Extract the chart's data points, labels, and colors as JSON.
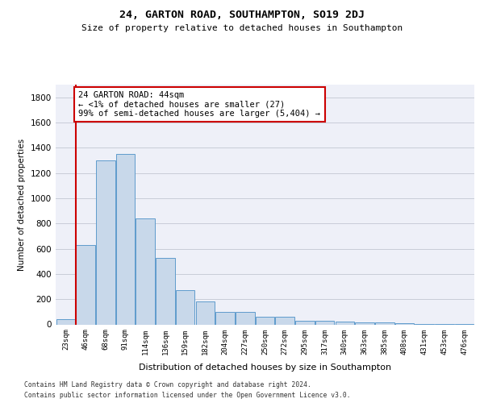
{
  "title_line1": "24, GARTON ROAD, SOUTHAMPTON, SO19 2DJ",
  "title_line2": "Size of property relative to detached houses in Southampton",
  "xlabel": "Distribution of detached houses by size in Southampton",
  "ylabel": "Number of detached properties",
  "categories": [
    "23sqm",
    "46sqm",
    "68sqm",
    "91sqm",
    "114sqm",
    "136sqm",
    "159sqm",
    "182sqm",
    "204sqm",
    "227sqm",
    "250sqm",
    "272sqm",
    "295sqm",
    "317sqm",
    "340sqm",
    "363sqm",
    "385sqm",
    "408sqm",
    "431sqm",
    "453sqm",
    "476sqm"
  ],
  "values": [
    40,
    630,
    1300,
    1350,
    840,
    525,
    270,
    185,
    100,
    100,
    60,
    60,
    30,
    30,
    25,
    15,
    15,
    10,
    5,
    5,
    5
  ],
  "bar_color": "#c8d8ea",
  "bar_edge_color": "#5f9bcc",
  "annotation_text_line1": "24 GARTON ROAD: 44sqm",
  "annotation_text_line2": "← <1% of detached houses are smaller (27)",
  "annotation_text_line3": "99% of semi-detached houses are larger (5,404) →",
  "annotation_box_color": "#ffffff",
  "annotation_box_edge": "#cc0000",
  "vline_color": "#cc0000",
  "ylim": [
    0,
    1900
  ],
  "yticks": [
    0,
    200,
    400,
    600,
    800,
    1000,
    1200,
    1400,
    1600,
    1800
  ],
  "grid_color": "#c8ccd8",
  "background_color": "#eef0f8",
  "footer_line1": "Contains HM Land Registry data © Crown copyright and database right 2024.",
  "footer_line2": "Contains public sector information licensed under the Open Government Licence v3.0."
}
